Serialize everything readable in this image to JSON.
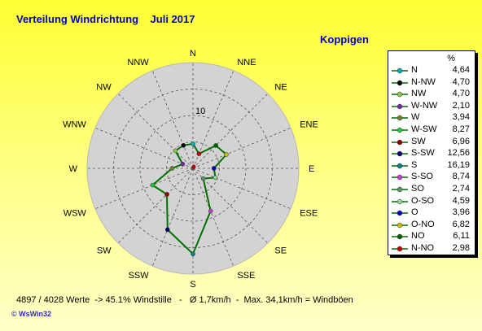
{
  "header": {
    "title": "Verteilung Windrichtung    Juli 2017",
    "location": "Koppigen"
  },
  "footer": {
    "stats": "4897 / 4028 Werte  -> 45.1% Windstille   -   Ø 1,7km/h  -  Max. 34,1km/h = Windböen",
    "credit": "© WsWin32"
  },
  "chart_data": {
    "type": "radar",
    "direction_labels": [
      "N",
      "NNE",
      "NE",
      "ENE",
      "E",
      "ESE",
      "SE",
      "SSE",
      "S",
      "SSW",
      "SW",
      "WSW",
      "W",
      "WNW",
      "NW",
      "NNW"
    ],
    "ring_label": "10",
    "rmax": 20,
    "unit": "%",
    "series_color": "#007000",
    "colors": {
      "disc": "#d3d3d3",
      "title": "#0000c0"
    },
    "legend": [
      {
        "name": "N",
        "value": "4,64",
        "color": "#00b0b0"
      },
      {
        "name": "N-NW",
        "value": "4,70",
        "color": "#000000"
      },
      {
        "name": "NW",
        "value": "4,70",
        "color": "#90c050"
      },
      {
        "name": "W-NW",
        "value": "2,10",
        "color": "#7030a0"
      },
      {
        "name": "W",
        "value": "3,94",
        "color": "#708030"
      },
      {
        "name": "W-SW",
        "value": "8,27",
        "color": "#30c040"
      },
      {
        "name": "SW",
        "value": "6,96",
        "color": "#900000"
      },
      {
        "name": "S-SW",
        "value": "12,56",
        "color": "#000070"
      },
      {
        "name": "S",
        "value": "16,19",
        "color": "#008080"
      },
      {
        "name": "S-SO",
        "value": "8,74",
        "color": "#c040c0"
      },
      {
        "name": "SO",
        "value": "2,74",
        "color": "#609070"
      },
      {
        "name": "O-SO",
        "value": "4,59",
        "color": "#90d090"
      },
      {
        "name": "O",
        "value": "3,96",
        "color": "#0000c0"
      },
      {
        "name": "O-NO",
        "value": "6,82",
        "color": "#c0c000"
      },
      {
        "name": "NO",
        "value": "6,11",
        "color": "#006000"
      },
      {
        "name": "N-NO",
        "value": "2,98",
        "color": "#c00000"
      }
    ],
    "values": [
      {
        "dir": "N",
        "value": 4.64,
        "color": "#00b0b0"
      },
      {
        "dir": "NNE",
        "value": 2.98,
        "color": "#c00000"
      },
      {
        "dir": "NE",
        "value": 6.11,
        "color": "#006000"
      },
      {
        "dir": "ENE",
        "value": 6.82,
        "color": "#c0c000"
      },
      {
        "dir": "E",
        "value": 3.96,
        "color": "#0000c0"
      },
      {
        "dir": "ESE",
        "value": 4.59,
        "color": "#90d090"
      },
      {
        "dir": "SE",
        "value": 2.74,
        "color": "#609070"
      },
      {
        "dir": "SSE",
        "value": 8.74,
        "color": "#c040c0"
      },
      {
        "dir": "S",
        "value": 16.19,
        "color": "#008080"
      },
      {
        "dir": "SSW",
        "value": 12.56,
        "color": "#000070"
      },
      {
        "dir": "SW",
        "value": 6.96,
        "color": "#900000"
      },
      {
        "dir": "WSW",
        "value": 8.27,
        "color": "#30c040"
      },
      {
        "dir": "W",
        "value": 3.94,
        "color": "#708030"
      },
      {
        "dir": "WNW",
        "value": 2.1,
        "color": "#7030a0"
      },
      {
        "dir": "NW",
        "value": 4.7,
        "color": "#90c050"
      },
      {
        "dir": "NNW",
        "value": 4.7,
        "color": "#000000"
      }
    ]
  }
}
